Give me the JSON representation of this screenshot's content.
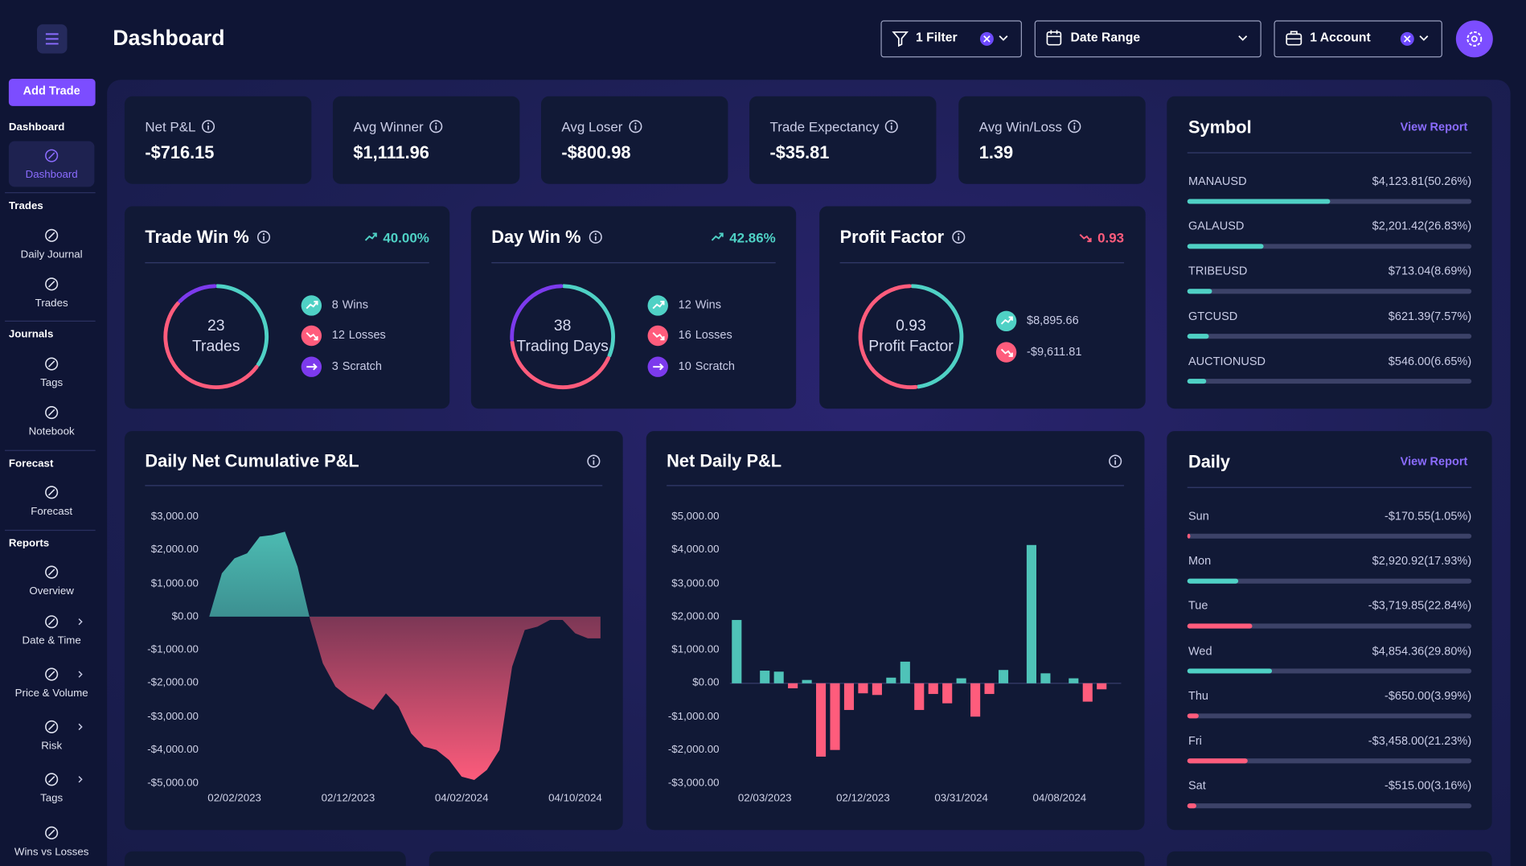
{
  "header": {
    "title": "Dashboard",
    "filter": "1 Filter",
    "date_range": "Date Range",
    "account": "1 Account"
  },
  "sidebar": {
    "add_trade": "Add Trade",
    "sections": [
      {
        "title": "Dashboard",
        "items": [
          "Dashboard"
        ]
      },
      {
        "title": "Trades",
        "items": [
          "Daily Journal",
          "Trades"
        ]
      },
      {
        "title": "Journals",
        "items": [
          "Tags",
          "Notebook"
        ]
      },
      {
        "title": "Forecast",
        "items": [
          "Forecast"
        ]
      },
      {
        "title": "Reports",
        "items": [
          "Overview",
          "Date & Time",
          "Price & Volume",
          "Risk",
          "Tags",
          "Wins vs Losses"
        ]
      }
    ]
  },
  "stats": [
    {
      "label": "Net P&L",
      "value": "-$716.15"
    },
    {
      "label": "Avg Winner",
      "value": "$1,111.96"
    },
    {
      "label": "Avg Loser",
      "value": "-$800.98"
    },
    {
      "label": "Trade Expectancy",
      "value": "-$35.81"
    },
    {
      "label": "Avg Win/Loss",
      "value": "1.39"
    }
  ],
  "win_cards": [
    {
      "title": "Trade Win %",
      "change": "40.00%",
      "change_color": "#4fd1c5",
      "center_value": 23,
      "center_label": "Trades",
      "legend": [
        {
          "count": 8,
          "label": "Wins",
          "color": "#4fd1c5"
        },
        {
          "count": 12,
          "label": "Losses",
          "color": "#ff5c7c"
        },
        {
          "count": 3,
          "label": "Scratch",
          "color": "#7c3aed"
        }
      ]
    },
    {
      "title": "Day Win %",
      "change": "42.86%",
      "change_color": "#4fd1c5",
      "center_value": 38,
      "center_label": "Trading Days",
      "legend": [
        {
          "count": 12,
          "label": "Wins",
          "color": "#4fd1c5"
        },
        {
          "count": 16,
          "label": "Losses",
          "color": "#ff5c7c"
        },
        {
          "count": 10,
          "label": "Scratch",
          "color": "#7c3aed"
        }
      ]
    },
    {
      "title": "Profit Factor",
      "change": "0.93",
      "change_color": "#ff5c7c",
      "center_value": 0.93,
      "center_label": "Profit Factor",
      "legend": [
        {
          "value": 8895.66,
          "label": "$8,895.66",
          "color": "#4fd1c5"
        },
        {
          "value": -9611.81,
          "label": "-$9,611.81",
          "color": "#ff5c7c"
        }
      ]
    }
  ],
  "symbol": {
    "title": "Symbol",
    "link": "View Report",
    "rows": [
      {
        "name": "MANAUSD",
        "amount": "$4,123.81",
        "share": 50.26,
        "share_label": "(50.26%)",
        "color": "#4fd1c5"
      },
      {
        "name": "GALAUSD",
        "amount": "$2,201.42",
        "share": 26.83,
        "share_label": "(26.83%)",
        "color": "#4fd1c5"
      },
      {
        "name": "TRIBEUSD",
        "amount": "$713.04",
        "share": 8.69,
        "share_label": "(8.69%)",
        "color": "#4fd1c5"
      },
      {
        "name": "GTCUSD",
        "amount": "$621.39",
        "share": 7.57,
        "share_label": "(7.57%)",
        "color": "#4fd1c5"
      },
      {
        "name": "AUCTIONUSD",
        "amount": "$546.00",
        "share": 6.65,
        "share_label": "(6.65%)",
        "color": "#4fd1c5"
      }
    ]
  },
  "daily": {
    "title": "Daily",
    "link": "View Report",
    "rows": [
      {
        "name": "Sun",
        "amount": "-$170.55",
        "share": 1.05,
        "share_label": "(1.05%)",
        "color": "#ff5c7c"
      },
      {
        "name": "Mon",
        "amount": "$2,920.92",
        "share": 17.93,
        "share_label": "(17.93%)",
        "color": "#4fd1c5"
      },
      {
        "name": "Tue",
        "amount": "-$3,719.85",
        "share": 22.84,
        "share_label": "(22.84%)",
        "color": "#ff5c7c"
      },
      {
        "name": "Wed",
        "amount": "$4,854.36",
        "share": 29.8,
        "share_label": "(29.80%)",
        "color": "#4fd1c5"
      },
      {
        "name": "Thu",
        "amount": "-$650.00",
        "share": 3.99,
        "share_label": "(3.99%)",
        "color": "#ff5c7c"
      },
      {
        "name": "Fri",
        "amount": "-$3,458.00",
        "share": 21.23,
        "share_label": "(21.23%)",
        "color": "#ff5c7c"
      },
      {
        "name": "Sat",
        "amount": "-$515.00",
        "share": 3.16,
        "share_label": "(3.16%)",
        "color": "#ff5c7c"
      }
    ]
  },
  "chart_data": [
    {
      "type": "area",
      "title": "Daily Net Cumulative P&L",
      "categories": [
        null,
        null,
        "02/02/2023",
        null,
        null,
        null,
        null,
        null,
        null,
        null,
        null,
        "02/12/2023",
        null,
        null,
        null,
        null,
        null,
        null,
        null,
        null,
        "04/02/2024",
        null,
        null,
        null,
        null,
        null,
        null,
        null,
        null,
        "04/10/2024",
        null,
        null
      ],
      "values": [
        0,
        1300,
        1750,
        1900,
        2400,
        2450,
        2550,
        1500,
        -100,
        -1400,
        -2100,
        -2400,
        -2600,
        -2800,
        -2300,
        -2700,
        -3500,
        -3900,
        -4000,
        -4300,
        -4800,
        -4900,
        -4600,
        -4000,
        -1500,
        -400,
        -300,
        -100,
        -100,
        -500,
        -650,
        -650
      ],
      "ylim": [
        -5000,
        3000
      ],
      "yticks": [
        {
          "value": 3000,
          "label": "$3,000.00"
        },
        {
          "value": 2000,
          "label": "$2,000.00"
        },
        {
          "value": 1000,
          "label": "$1,000.00"
        },
        {
          "value": 0,
          "label": "$0.00"
        },
        {
          "value": -1000,
          "label": "-$1,000.00"
        },
        {
          "value": -2000,
          "label": "-$2,000.00"
        },
        {
          "value": -3000,
          "label": "-$3,000.00"
        },
        {
          "value": -4000,
          "label": "-$4,000.00"
        },
        {
          "value": -5000,
          "label": "-$5,000.00"
        }
      ],
      "positive_color": "#4fc3b8",
      "negative_color": "#ff5c7c"
    },
    {
      "type": "bar",
      "title": "Net Daily P&L",
      "categories": [
        null,
        null,
        "02/03/2023",
        null,
        null,
        null,
        null,
        null,
        null,
        "02/12/2023",
        null,
        null,
        null,
        null,
        null,
        null,
        "03/31/2024",
        null,
        null,
        null,
        null,
        null,
        null,
        "04/08/2024",
        null,
        null,
        null
      ],
      "values": [
        1900,
        0,
        380,
        350,
        -150,
        100,
        -2200,
        -2000,
        -800,
        -300,
        -350,
        170,
        650,
        -800,
        -320,
        -600,
        150,
        -1000,
        -320,
        400,
        0,
        4150,
        300,
        0,
        150,
        -550,
        -180
      ],
      "ylim": [
        -3000,
        5000
      ],
      "yticks": [
        {
          "value": 5000,
          "label": "$5,000.00"
        },
        {
          "value": 4000,
          "label": "$4,000.00"
        },
        {
          "value": 3000,
          "label": "$3,000.00"
        },
        {
          "value": 2000,
          "label": "$2,000.00"
        },
        {
          "value": 1000,
          "label": "$1,000.00"
        },
        {
          "value": 0,
          "label": "$0.00"
        },
        {
          "value": -1000,
          "label": "-$1,000.00"
        },
        {
          "value": -2000,
          "label": "-$2,000.00"
        },
        {
          "value": -3000,
          "label": "-$3,000.00"
        }
      ],
      "positive_color": "#4fc3b8",
      "negative_color": "#ff5c7c"
    }
  ]
}
